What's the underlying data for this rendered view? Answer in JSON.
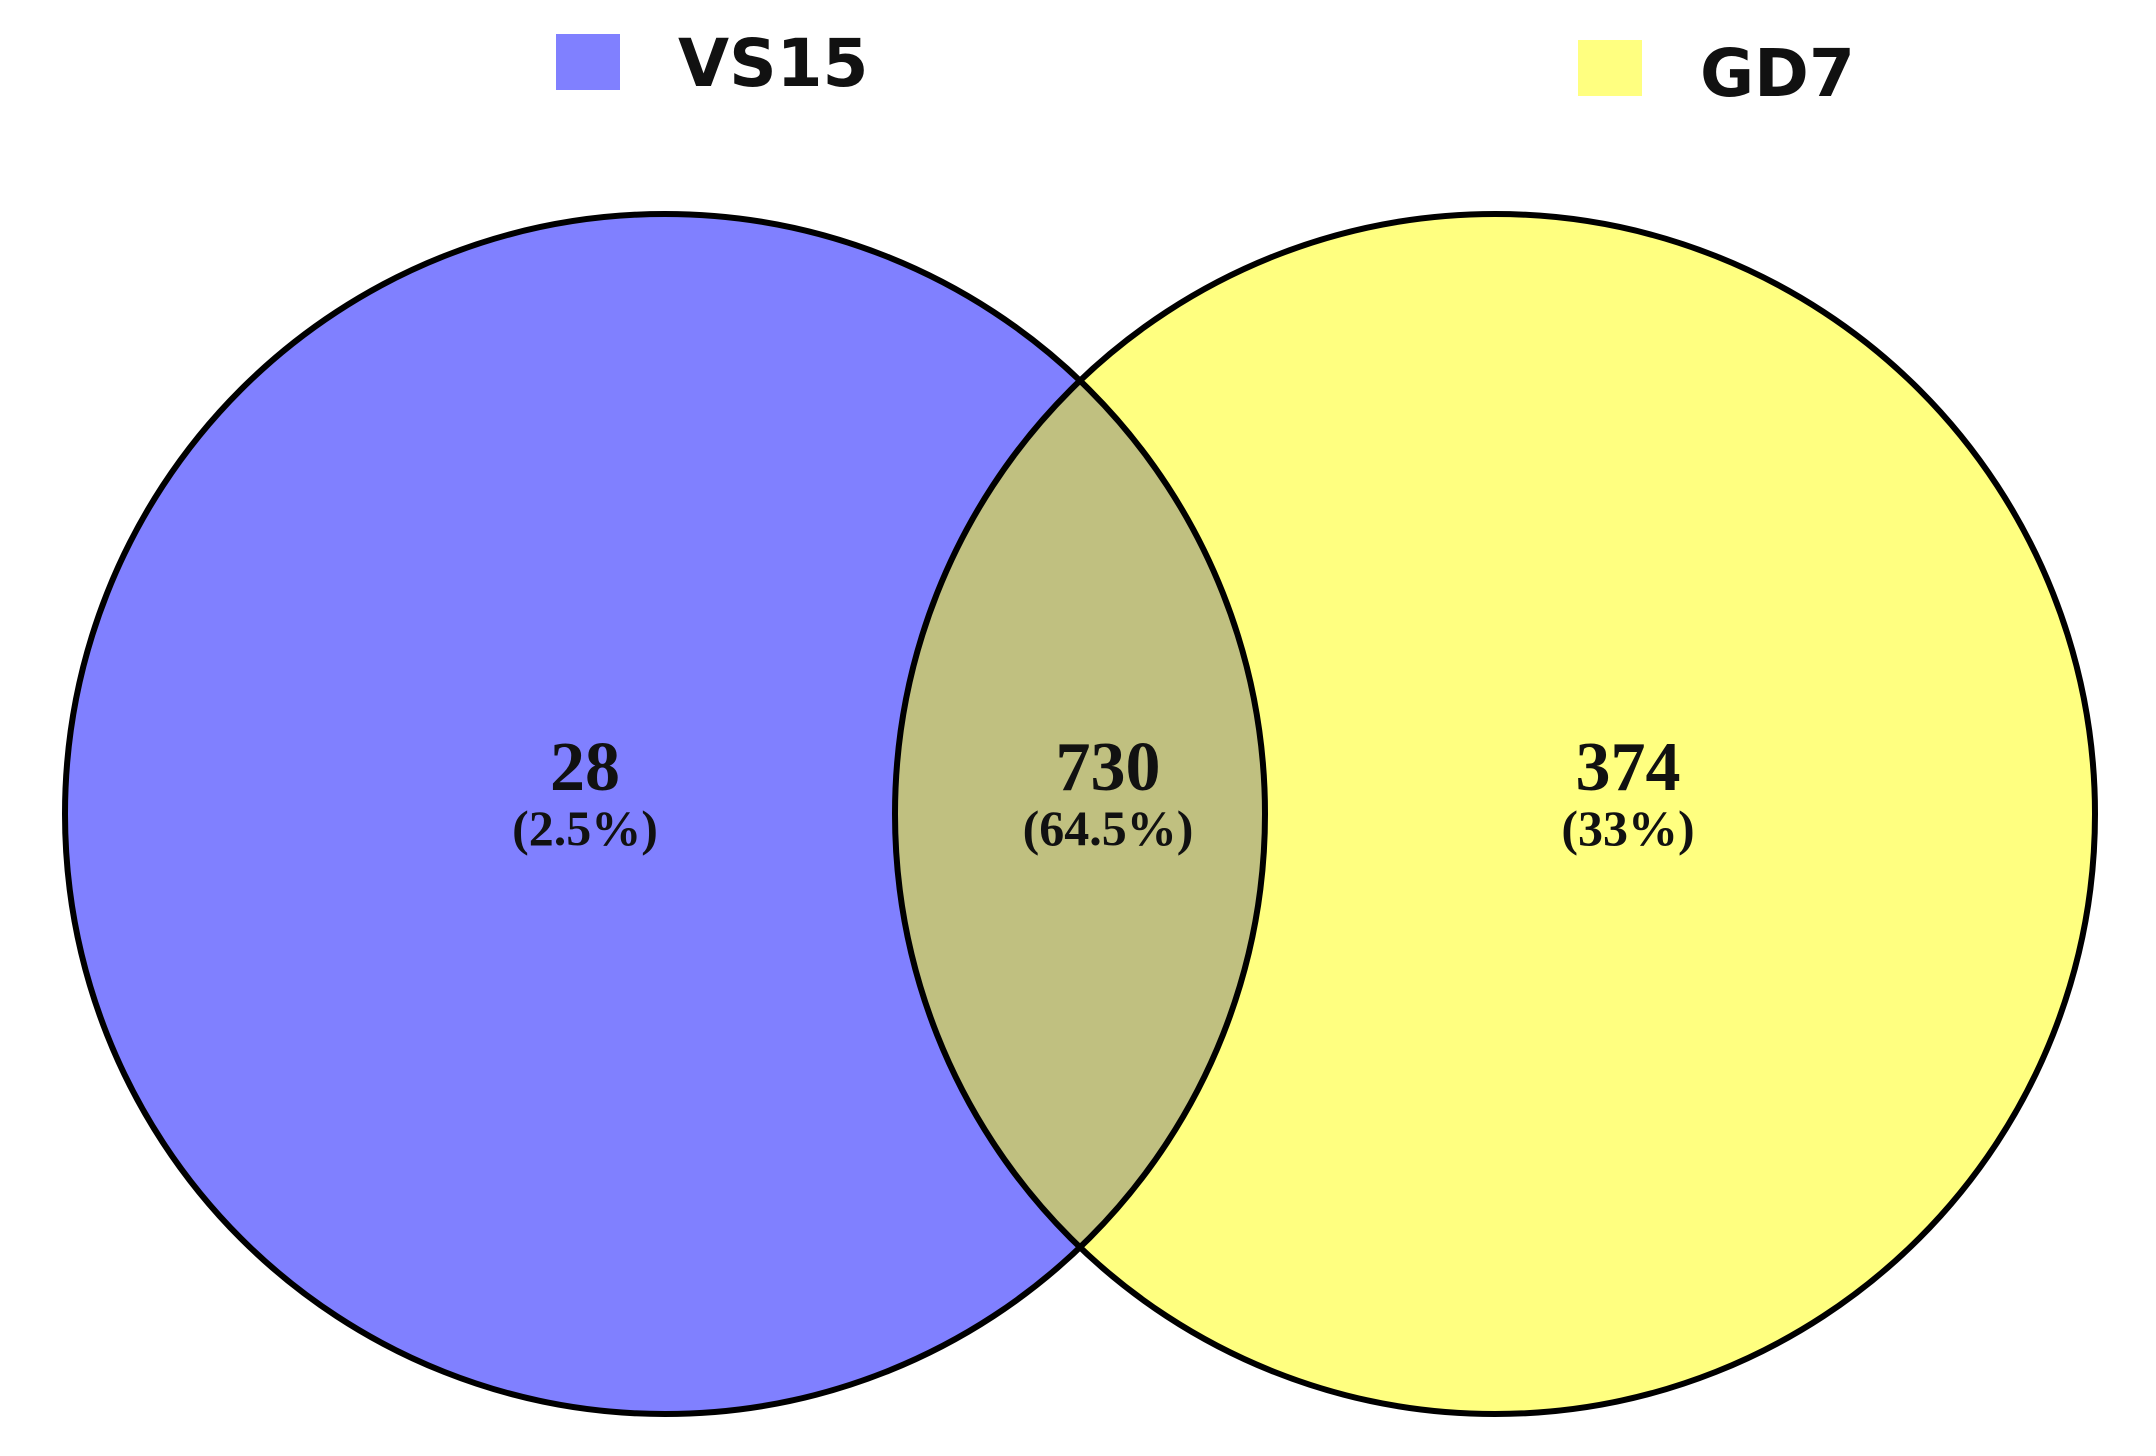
{
  "legend": [
    {
      "name": "VS15",
      "color": "#8080ff"
    },
    {
      "name": "GD7",
      "color": "#ffff80"
    }
  ],
  "sets": {
    "left": {
      "name": "VS15",
      "color": "#8080ff"
    },
    "right": {
      "name": "GD7",
      "color": "#ffff80"
    },
    "overlap_color": "#c0c080",
    "outline_color": "#000000"
  },
  "regions": {
    "vs15_only": {
      "count": "28",
      "percent": "(2.5%)"
    },
    "both": {
      "count": "730",
      "percent": "(64.5%)"
    },
    "gd7_only": {
      "count": "374",
      "percent": "(33%)"
    }
  }
}
